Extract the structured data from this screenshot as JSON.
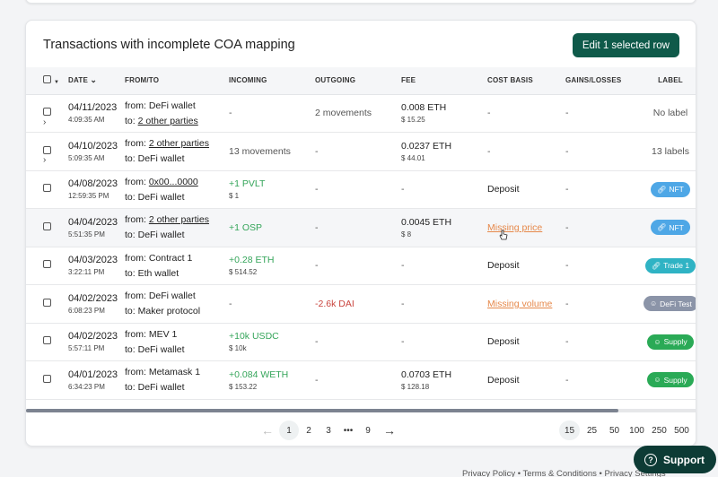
{
  "card": {
    "title": "Transactions with incomplete COA mapping",
    "edit_button": "Edit 1 selected row"
  },
  "columns": {
    "date": "DATE",
    "from_to": "FROM/TO",
    "incoming": "INCOMING",
    "outgoing": "OUTGOING",
    "fee": "FEE",
    "cost_basis": "COST BASIS",
    "gains_losses": "GAINS/LOSSES",
    "label": "LABEL"
  },
  "rows": [
    {
      "date": "04/11/2023",
      "time": "4:09:35 AM",
      "from_prefix": "from:",
      "from": "DeFi wallet",
      "to_prefix": "to:",
      "to": "2 other parties",
      "incoming": "-",
      "incoming_sub": "",
      "outgoing": "2 movements",
      "fee": "0.008 ETH",
      "fee_sub": "$ 15.25",
      "cost_basis": "-",
      "gains": "-",
      "label": "No label"
    },
    {
      "date": "04/10/2023",
      "time": "5:09:35 AM",
      "from_prefix": "from:",
      "from": "2 other parties",
      "to_prefix": "to:",
      "to": "DeFi wallet",
      "incoming": "13 movements",
      "incoming_sub": "",
      "outgoing": "-",
      "fee": "0.0237 ETH",
      "fee_sub": "$ 44.01",
      "cost_basis": "-",
      "gains": "-",
      "label": "13 labels"
    },
    {
      "date": "04/08/2023",
      "time": "12:59:35 PM",
      "from_prefix": "from:",
      "from": "0x00...0000",
      "to_prefix": "to:",
      "to": "DeFi wallet",
      "incoming": "+1 PVLT",
      "incoming_sub": "$ 1",
      "outgoing": "-",
      "fee": "-",
      "fee_sub": "",
      "cost_basis": "Deposit",
      "gains": "-",
      "label": "NFT"
    },
    {
      "date": "04/04/2023",
      "time": "5:51:35 PM",
      "from_prefix": "from:",
      "from": "2 other parties",
      "to_prefix": "to:",
      "to": "DeFi wallet",
      "incoming": "+1 OSP",
      "incoming_sub": "",
      "outgoing": "-",
      "fee": "0.0045 ETH",
      "fee_sub": "$ 8",
      "cost_basis": "Missing price",
      "gains": "-",
      "label": "NFT"
    },
    {
      "date": "04/03/2023",
      "time": "3:22:11 PM",
      "from_prefix": "from:",
      "from": "Contract 1",
      "to_prefix": "to:",
      "to": "Eth wallet",
      "incoming": "+0.28 ETH",
      "incoming_sub": "$ 514.52",
      "outgoing": "-",
      "fee": "-",
      "fee_sub": "",
      "cost_basis": "Deposit",
      "gains": "-",
      "label": "Trade 1"
    },
    {
      "date": "04/02/2023",
      "time": "6:08:23 PM",
      "from_prefix": "from:",
      "from": "DeFi wallet",
      "to_prefix": "to:",
      "to": "Maker protocol",
      "incoming": "-",
      "incoming_sub": "",
      "outgoing": "-2.6k DAI",
      "fee": "-",
      "fee_sub": "",
      "cost_basis": "Missing volume",
      "gains": "-",
      "label": "DeFi Test"
    },
    {
      "date": "04/02/2023",
      "time": "5:57:11 PM",
      "from_prefix": "from:",
      "from": "MEV 1",
      "to_prefix": "to:",
      "to": "DeFi wallet",
      "incoming": "+10k USDC",
      "incoming_sub": "$ 10k",
      "outgoing": "-",
      "fee": "-",
      "fee_sub": "",
      "cost_basis": "Deposit",
      "gains": "-",
      "label": "Supply"
    },
    {
      "date": "04/01/2023",
      "time": "6:34:23 PM",
      "from_prefix": "from:",
      "from": "Metamask 1",
      "to_prefix": "to:",
      "to": "DeFi wallet",
      "incoming": "+0.084 WETH",
      "incoming_sub": "$ 153.22",
      "outgoing": "-",
      "fee": "0.0703 ETH",
      "fee_sub": "$ 128.18",
      "cost_basis": "Deposit",
      "gains": "-",
      "label": "Supply"
    }
  ],
  "pagination": {
    "pages": [
      "1",
      "2",
      "3",
      "•••",
      "9"
    ],
    "sizes": [
      "15",
      "25",
      "50",
      "100",
      "250",
      "500"
    ]
  },
  "footer": {
    "text": "Privacy Policy • Terms & Conditions • Privacy Settings"
  },
  "support": {
    "label": "Support"
  },
  "colors": {
    "accent": "#0f5a4a",
    "incoming": "#35a55a",
    "outgoing": "#c9443d",
    "warning": "#e6884a",
    "nft": "#4ea7e6",
    "trade": "#2fb3c4",
    "defi": "#8b94a8",
    "supply": "#2aaa56"
  }
}
